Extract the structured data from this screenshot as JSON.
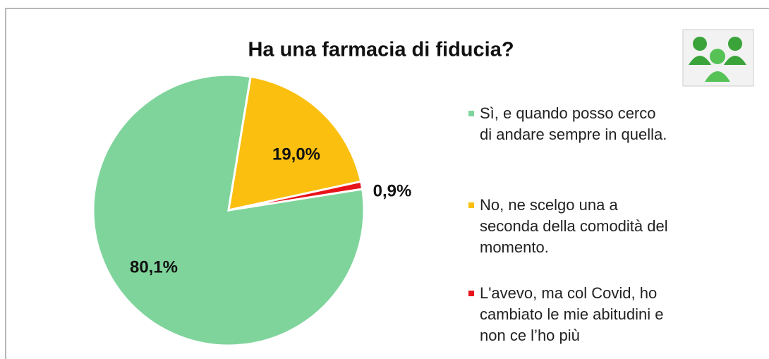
{
  "chart_data": {
    "type": "pie",
    "title": "Ha una farmacia di fiducia?",
    "series": [
      {
        "name": "Sì, e quando posso cerco\ndi andare sempre in quella.",
        "color": "#7fd49b",
        "values": [
          80.1
        ],
        "value_labels": [
          "80,1%"
        ]
      },
      {
        "name": "No, ne scelgo una a\nseconda della comodità del\nmomento.",
        "color": "#fbbf0f",
        "values": [
          19.0
        ],
        "value_labels": [
          "19,0%"
        ]
      },
      {
        "name": "L'avevo, ma col Covid, ho\ncambiato le mie abitudini e\nnon ce l’ho più",
        "color": "#e8141c",
        "values": [
          0.9
        ],
        "value_labels": [
          "0,9%"
        ]
      }
    ],
    "legend": "right"
  }
}
